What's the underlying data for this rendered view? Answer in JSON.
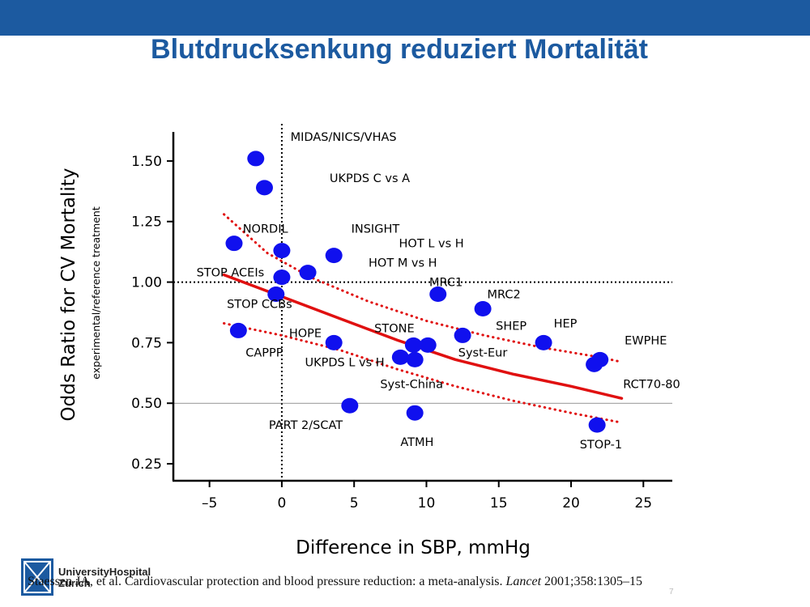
{
  "slide": {
    "title": "Blutdrucksenkung reduziert Mortalität",
    "citation_pre": "Staessen JA, et al. Cardiovascular protection and blood pressure reduction: a meta-analysis. ",
    "citation_journal": "Lancet",
    "citation_post": " 2001;358:1305–15",
    "logo_line1": "UniversityHospital",
    "logo_line2": "Zurich",
    "page_number": "7",
    "accent_color": "#1c5aa0"
  },
  "chart_data": {
    "type": "scatter",
    "title": "",
    "xlabel": "Difference in SBP, mmHg",
    "ylabel": "Odds Ratio for CV Mortality",
    "ylabel_sub": "experimental/reference treatment",
    "xlim": [
      -7.5,
      27
    ],
    "ylim": [
      0.18,
      1.62
    ],
    "xticks": [
      -5,
      0,
      5,
      10,
      15,
      20,
      25
    ],
    "xtick_labels": [
      "–5",
      "0",
      "5",
      "10",
      "15",
      "20",
      "25"
    ],
    "yticks": [
      0.25,
      0.5,
      0.75,
      1.0,
      1.25,
      1.5
    ],
    "ytick_labels": [
      "0.25",
      "0.50",
      "0.75",
      "1.00",
      "1.25",
      "1.50"
    ],
    "grid": false,
    "reference_lines": [
      {
        "axis": "x",
        "value": 0,
        "style": "dotted"
      },
      {
        "axis": "y",
        "value": 1.0,
        "style": "dotted"
      },
      {
        "axis": "y",
        "value": 0.5,
        "style": "thin"
      }
    ],
    "point_color": "#1010ee",
    "line_color": "#e01010",
    "points": [
      {
        "x": -1.8,
        "y": 1.51
      },
      {
        "x": -1.2,
        "y": 1.39
      },
      {
        "x": -3.3,
        "y": 1.16
      },
      {
        "x": 0.0,
        "y": 1.13
      },
      {
        "x": 3.6,
        "y": 1.11
      },
      {
        "x": 1.8,
        "y": 1.04
      },
      {
        "x": 0.0,
        "y": 1.02
      },
      {
        "x": -0.4,
        "y": 0.95
      },
      {
        "x": 10.8,
        "y": 0.95
      },
      {
        "x": 13.9,
        "y": 0.89
      },
      {
        "x": -3.0,
        "y": 0.8
      },
      {
        "x": 12.5,
        "y": 0.78
      },
      {
        "x": 3.6,
        "y": 0.75
      },
      {
        "x": 9.1,
        "y": 0.74
      },
      {
        "x": 10.1,
        "y": 0.74
      },
      {
        "x": 18.1,
        "y": 0.75
      },
      {
        "x": 8.2,
        "y": 0.69
      },
      {
        "x": 9.2,
        "y": 0.68
      },
      {
        "x": 22.0,
        "y": 0.68
      },
      {
        "x": 21.6,
        "y": 0.66
      },
      {
        "x": 4.7,
        "y": 0.49
      },
      {
        "x": 9.2,
        "y": 0.46
      },
      {
        "x": 21.8,
        "y": 0.41
      }
    ],
    "regression_line": {
      "x": [
        -4,
        0,
        4,
        8,
        12,
        16,
        20,
        23.5
      ],
      "y": [
        1.03,
        0.94,
        0.85,
        0.76,
        0.68,
        0.62,
        0.57,
        0.52
      ]
    },
    "ci_upper": {
      "x": [
        -4,
        -1,
        2,
        6,
        10,
        14,
        18,
        22,
        23.5
      ],
      "y": [
        1.28,
        1.12,
        1.02,
        0.92,
        0.84,
        0.78,
        0.73,
        0.69,
        0.67
      ]
    },
    "ci_lower": {
      "x": [
        -4,
        0,
        4,
        8,
        12,
        16,
        20,
        23.5
      ],
      "y": [
        0.83,
        0.78,
        0.72,
        0.64,
        0.57,
        0.51,
        0.46,
        0.42
      ]
    },
    "annotations": [
      {
        "text": "MIDAS/NICS/VHAS",
        "x": 0.6,
        "y": 1.6
      },
      {
        "text": "UKPDS C vs A",
        "x": 3.3,
        "y": 1.43
      },
      {
        "text": "NORDIL",
        "x": -2.7,
        "y": 1.22
      },
      {
        "text": "INSIGHT",
        "x": 4.8,
        "y": 1.22
      },
      {
        "text": "HOT L vs H",
        "x": 8.1,
        "y": 1.16
      },
      {
        "text": "HOT M vs H",
        "x": 6.0,
        "y": 1.08
      },
      {
        "text": "STOP ACEIs",
        "x": -5.9,
        "y": 1.04
      },
      {
        "text": "MRC1",
        "x": 10.2,
        "y": 1.0
      },
      {
        "text": "MRC2",
        "x": 14.2,
        "y": 0.95
      },
      {
        "text": "STOP CCBs",
        "x": -3.8,
        "y": 0.91
      },
      {
        "text": "SHEP",
        "x": 14.8,
        "y": 0.82
      },
      {
        "text": "HEP",
        "x": 18.8,
        "y": 0.83
      },
      {
        "text": "STONE",
        "x": 6.4,
        "y": 0.81
      },
      {
        "text": "HOPE",
        "x": 0.5,
        "y": 0.79
      },
      {
        "text": "EWPHE",
        "x": 23.7,
        "y": 0.76
      },
      {
        "text": "CAPPP",
        "x": -2.5,
        "y": 0.71
      },
      {
        "text": "Syst-Eur",
        "x": 12.2,
        "y": 0.71
      },
      {
        "text": "UKPDS L vs H",
        "x": 1.6,
        "y": 0.67
      },
      {
        "text": "Syst-China",
        "x": 6.8,
        "y": 0.58
      },
      {
        "text": "RCT70-80",
        "x": 23.6,
        "y": 0.58
      },
      {
        "text": "PART 2/SCAT",
        "x": -0.9,
        "y": 0.41
      },
      {
        "text": "ATMH",
        "x": 8.2,
        "y": 0.34
      },
      {
        "text": "STOP-1",
        "x": 20.6,
        "y": 0.33
      }
    ]
  }
}
